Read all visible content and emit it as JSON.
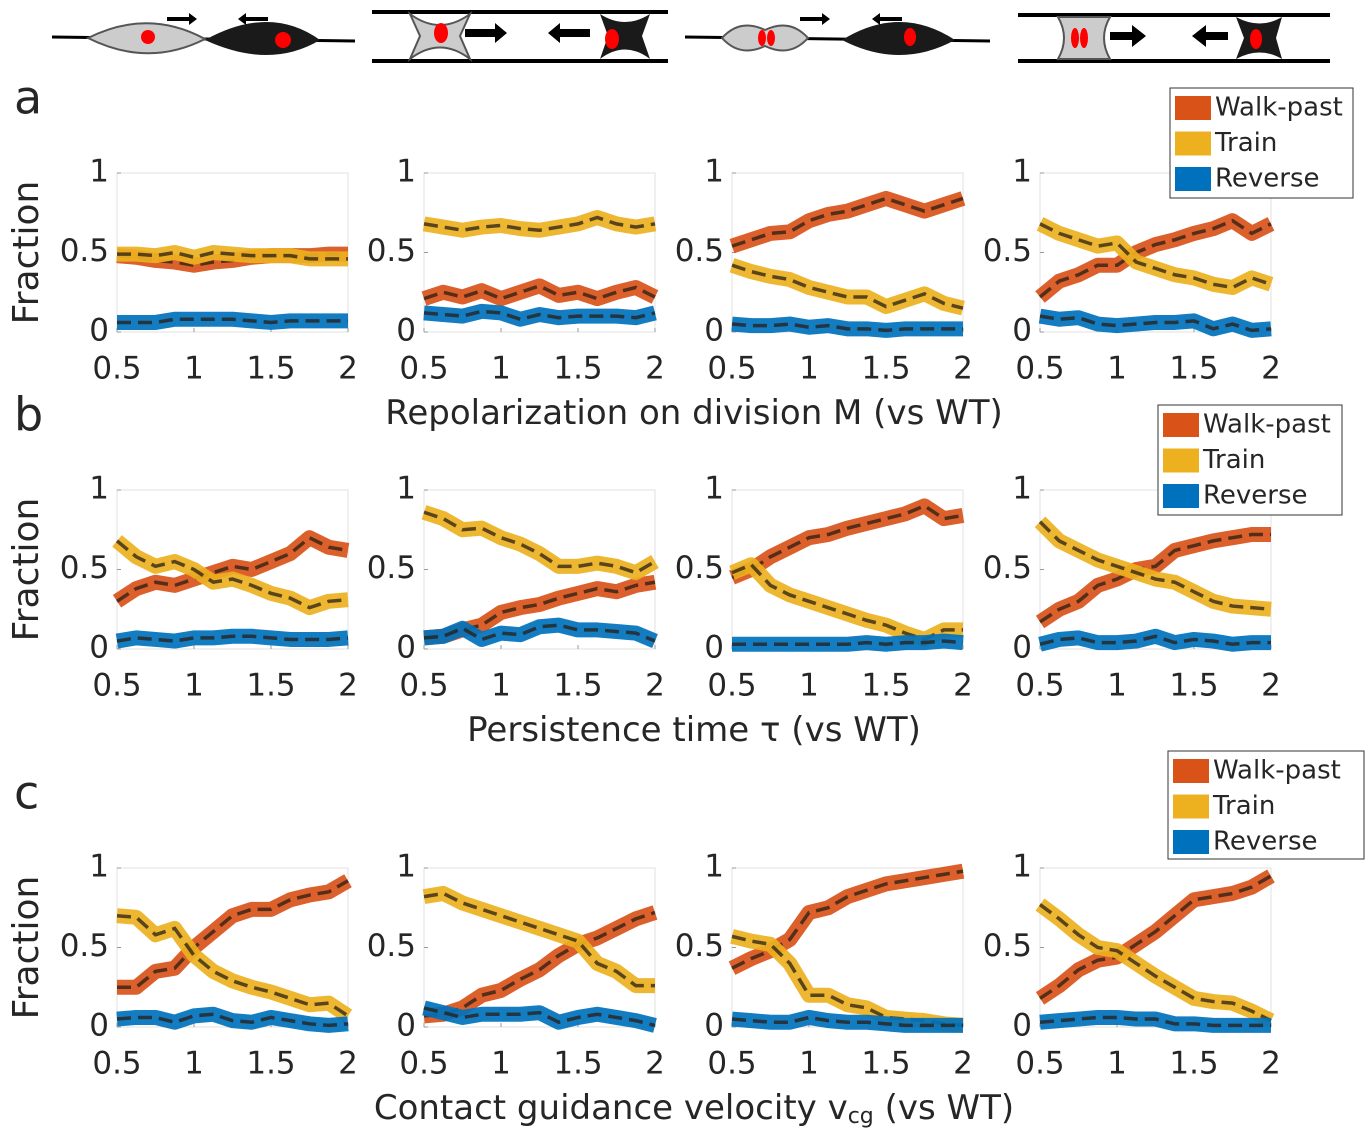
{
  "chart_data": [
    {
      "type": "line",
      "panel_label": "a",
      "ylabel": "Fraction",
      "xlabel": "Repolarization on division M (vs WT)",
      "x": [
        0.5,
        0.625,
        0.75,
        0.875,
        1,
        1.125,
        1.25,
        1.375,
        1.5,
        1.625,
        1.75,
        1.875,
        2
      ],
      "xlim": [
        0.5,
        2
      ],
      "ylim": [
        0,
        1
      ],
      "xticks": [
        0.5,
        1,
        1.5,
        2
      ],
      "yticks": [
        0,
        0.5,
        1
      ],
      "series": [
        {
          "name": "Walk-past",
          "color": "#d95319",
          "values": [
            0.48,
            0.47,
            0.45,
            0.44,
            0.42,
            0.44,
            0.45,
            0.47,
            0.48,
            0.48,
            0.48,
            0.49,
            0.49
          ]
        },
        {
          "name": "Train",
          "color": "#edb120",
          "values": [
            0.49,
            0.49,
            0.48,
            0.5,
            0.47,
            0.5,
            0.49,
            0.48,
            0.48,
            0.48,
            0.46,
            0.46,
            0.46
          ]
        },
        {
          "name": "Reverse",
          "color": "#0072bd",
          "values": [
            0.06,
            0.06,
            0.06,
            0.08,
            0.08,
            0.08,
            0.08,
            0.07,
            0.06,
            0.07,
            0.07,
            0.07,
            0.07
          ]
        }
      ]
    },
    {
      "type": "line",
      "x": [
        0.5,
        0.625,
        0.75,
        0.875,
        1,
        1.125,
        1.25,
        1.375,
        1.5,
        1.625,
        1.75,
        1.875,
        2
      ],
      "xlim": [
        0.5,
        2
      ],
      "ylim": [
        0,
        1
      ],
      "xticks": [
        0.5,
        1,
        1.5,
        2
      ],
      "yticks": [
        0,
        0.5,
        1
      ],
      "series": [
        {
          "name": "Walk-past",
          "color": "#d95319",
          "values": [
            0.21,
            0.25,
            0.22,
            0.26,
            0.21,
            0.25,
            0.29,
            0.23,
            0.25,
            0.21,
            0.25,
            0.28,
            0.22
          ]
        },
        {
          "name": "Train",
          "color": "#edb120",
          "values": [
            0.68,
            0.66,
            0.64,
            0.66,
            0.67,
            0.65,
            0.64,
            0.66,
            0.68,
            0.72,
            0.68,
            0.66,
            0.68
          ]
        },
        {
          "name": "Reverse",
          "color": "#0072bd",
          "values": [
            0.12,
            0.11,
            0.1,
            0.13,
            0.12,
            0.08,
            0.11,
            0.09,
            0.1,
            0.1,
            0.1,
            0.09,
            0.12
          ]
        }
      ]
    },
    {
      "type": "line",
      "x": [
        0.5,
        0.625,
        0.75,
        0.875,
        1,
        1.125,
        1.25,
        1.375,
        1.5,
        1.625,
        1.75,
        1.875,
        2
      ],
      "xlim": [
        0.5,
        2
      ],
      "ylim": [
        0,
        1
      ],
      "xticks": [
        0.5,
        1,
        1.5,
        2
      ],
      "yticks": [
        0,
        0.5,
        1
      ],
      "series": [
        {
          "name": "Walk-past",
          "color": "#d95319",
          "values": [
            0.54,
            0.58,
            0.62,
            0.63,
            0.7,
            0.74,
            0.76,
            0.8,
            0.84,
            0.8,
            0.76,
            0.8,
            0.84
          ]
        },
        {
          "name": "Train",
          "color": "#edb120",
          "values": [
            0.42,
            0.38,
            0.35,
            0.33,
            0.28,
            0.25,
            0.22,
            0.22,
            0.16,
            0.2,
            0.24,
            0.18,
            0.15
          ]
        },
        {
          "name": "Reverse",
          "color": "#0072bd",
          "values": [
            0.05,
            0.04,
            0.04,
            0.05,
            0.03,
            0.04,
            0.02,
            0.02,
            0.01,
            0.02,
            0.02,
            0.02,
            0.02
          ]
        }
      ]
    },
    {
      "type": "line",
      "legend": "top-right",
      "x": [
        0.5,
        0.625,
        0.75,
        0.875,
        1,
        1.125,
        1.25,
        1.375,
        1.5,
        1.625,
        1.75,
        1.875,
        2
      ],
      "xlim": [
        0.5,
        2
      ],
      "ylim": [
        0,
        1
      ],
      "xticks": [
        0.5,
        1,
        1.5,
        2
      ],
      "yticks": [
        0,
        0.5,
        1
      ],
      "series": [
        {
          "name": "Walk-past",
          "color": "#d95319",
          "values": [
            0.22,
            0.32,
            0.36,
            0.42,
            0.42,
            0.5,
            0.55,
            0.58,
            0.62,
            0.65,
            0.7,
            0.62,
            0.68
          ]
        },
        {
          "name": "Train",
          "color": "#edb120",
          "values": [
            0.68,
            0.62,
            0.58,
            0.54,
            0.56,
            0.44,
            0.4,
            0.36,
            0.34,
            0.3,
            0.28,
            0.34,
            0.3
          ]
        },
        {
          "name": "Reverse",
          "color": "#0072bd",
          "values": [
            0.1,
            0.08,
            0.09,
            0.05,
            0.04,
            0.05,
            0.06,
            0.06,
            0.07,
            0.02,
            0.05,
            0.01,
            0.02
          ]
        }
      ]
    },
    {
      "type": "line",
      "panel_label": "b",
      "ylabel": "Fraction",
      "xlabel": "Persistence time τ (vs WT)",
      "x": [
        0.5,
        0.625,
        0.75,
        0.875,
        1,
        1.125,
        1.25,
        1.375,
        1.5,
        1.625,
        1.75,
        1.875,
        2
      ],
      "xlim": [
        0.5,
        2
      ],
      "ylim": [
        0,
        1
      ],
      "xticks": [
        0.5,
        1,
        1.5,
        2
      ],
      "yticks": [
        0,
        0.5,
        1
      ],
      "series": [
        {
          "name": "Walk-past",
          "color": "#d95319",
          "values": [
            0.3,
            0.38,
            0.42,
            0.4,
            0.44,
            0.48,
            0.52,
            0.5,
            0.55,
            0.6,
            0.7,
            0.64,
            0.62
          ]
        },
        {
          "name": "Train",
          "color": "#edb120",
          "values": [
            0.68,
            0.58,
            0.52,
            0.55,
            0.5,
            0.42,
            0.44,
            0.4,
            0.35,
            0.32,
            0.26,
            0.3,
            0.31
          ]
        },
        {
          "name": "Reverse",
          "color": "#0072bd",
          "values": [
            0.05,
            0.07,
            0.06,
            0.05,
            0.07,
            0.07,
            0.08,
            0.08,
            0.07,
            0.06,
            0.06,
            0.06,
            0.07
          ]
        }
      ]
    },
    {
      "type": "line",
      "x": [
        0.5,
        0.625,
        0.75,
        0.875,
        1,
        1.125,
        1.25,
        1.375,
        1.5,
        1.625,
        1.75,
        1.875,
        2
      ],
      "xlim": [
        0.5,
        2
      ],
      "ylim": [
        0,
        1
      ],
      "xticks": [
        0.5,
        1,
        1.5,
        2
      ],
      "yticks": [
        0,
        0.5,
        1
      ],
      "series": [
        {
          "name": "Walk-past",
          "color": "#d95319",
          "values": [
            0.07,
            0.08,
            0.12,
            0.15,
            0.23,
            0.26,
            0.28,
            0.32,
            0.35,
            0.38,
            0.36,
            0.4,
            0.42
          ]
        },
        {
          "name": "Train",
          "color": "#edb120",
          "values": [
            0.86,
            0.82,
            0.75,
            0.76,
            0.7,
            0.66,
            0.6,
            0.52,
            0.52,
            0.54,
            0.52,
            0.48,
            0.55
          ]
        },
        {
          "name": "Reverse",
          "color": "#0072bd",
          "values": [
            0.07,
            0.08,
            0.13,
            0.06,
            0.1,
            0.09,
            0.14,
            0.15,
            0.12,
            0.12,
            0.11,
            0.1,
            0.05
          ]
        }
      ]
    },
    {
      "type": "line",
      "x": [
        0.5,
        0.625,
        0.75,
        0.875,
        1,
        1.125,
        1.25,
        1.375,
        1.5,
        1.625,
        1.75,
        1.875,
        2
      ],
      "xlim": [
        0.5,
        2
      ],
      "ylim": [
        0,
        1
      ],
      "xticks": [
        0.5,
        1,
        1.5,
        2
      ],
      "yticks": [
        0,
        0.5,
        1
      ],
      "series": [
        {
          "name": "Walk-past",
          "color": "#d95319",
          "values": [
            0.45,
            0.5,
            0.58,
            0.64,
            0.7,
            0.72,
            0.76,
            0.79,
            0.82,
            0.85,
            0.9,
            0.82,
            0.84
          ]
        },
        {
          "name": "Train",
          "color": "#edb120",
          "values": [
            0.48,
            0.53,
            0.4,
            0.34,
            0.3,
            0.26,
            0.22,
            0.18,
            0.15,
            0.1,
            0.06,
            0.12,
            0.12
          ]
        },
        {
          "name": "Reverse",
          "color": "#0072bd",
          "values": [
            0.03,
            0.03,
            0.03,
            0.03,
            0.03,
            0.03,
            0.03,
            0.04,
            0.03,
            0.04,
            0.04,
            0.05,
            0.04
          ]
        }
      ]
    },
    {
      "type": "line",
      "legend": "top-right",
      "x": [
        0.5,
        0.625,
        0.75,
        0.875,
        1,
        1.125,
        1.25,
        1.375,
        1.5,
        1.625,
        1.75,
        1.875,
        2
      ],
      "xlim": [
        0.5,
        2
      ],
      "ylim": [
        0,
        1
      ],
      "xticks": [
        0.5,
        1,
        1.5,
        2
      ],
      "yticks": [
        0,
        0.5,
        1
      ],
      "series": [
        {
          "name": "Walk-past",
          "color": "#d95319",
          "values": [
            0.17,
            0.25,
            0.3,
            0.4,
            0.44,
            0.5,
            0.52,
            0.62,
            0.65,
            0.68,
            0.7,
            0.72,
            0.72
          ]
        },
        {
          "name": "Train",
          "color": "#edb120",
          "values": [
            0.8,
            0.68,
            0.62,
            0.56,
            0.52,
            0.48,
            0.44,
            0.42,
            0.36,
            0.3,
            0.27,
            0.26,
            0.25
          ]
        },
        {
          "name": "Reverse",
          "color": "#0072bd",
          "values": [
            0.03,
            0.06,
            0.07,
            0.04,
            0.04,
            0.05,
            0.08,
            0.04,
            0.06,
            0.05,
            0.03,
            0.04,
            0.04
          ]
        }
      ]
    },
    {
      "type": "line",
      "panel_label": "c",
      "ylabel": "Fraction",
      "xlabel": "Contact guidance velocity v",
      "xlabel_sub": "cg",
      "xlabel_tail": " (vs WT)",
      "x": [
        0.5,
        0.625,
        0.75,
        0.875,
        1,
        1.125,
        1.25,
        1.375,
        1.5,
        1.625,
        1.75,
        1.875,
        2
      ],
      "xlim": [
        0.5,
        2
      ],
      "ylim": [
        0,
        1
      ],
      "xticks": [
        0.5,
        1,
        1.5,
        2
      ],
      "yticks": [
        0,
        0.5,
        1
      ],
      "series": [
        {
          "name": "Walk-past",
          "color": "#d95319",
          "values": [
            0.25,
            0.25,
            0.35,
            0.37,
            0.5,
            0.6,
            0.7,
            0.74,
            0.74,
            0.8,
            0.83,
            0.85,
            0.92
          ]
        },
        {
          "name": "Train",
          "color": "#edb120",
          "values": [
            0.7,
            0.69,
            0.58,
            0.62,
            0.45,
            0.35,
            0.29,
            0.25,
            0.22,
            0.18,
            0.14,
            0.15,
            0.07
          ]
        },
        {
          "name": "Reverse",
          "color": "#0072bd",
          "values": [
            0.05,
            0.06,
            0.06,
            0.03,
            0.07,
            0.08,
            0.04,
            0.03,
            0.06,
            0.04,
            0.02,
            0.01,
            0.02
          ]
        }
      ]
    },
    {
      "type": "line",
      "x": [
        0.5,
        0.625,
        0.75,
        0.875,
        1,
        1.125,
        1.25,
        1.375,
        1.5,
        1.625,
        1.75,
        1.875,
        2
      ],
      "xlim": [
        0.5,
        2
      ],
      "ylim": [
        0,
        1
      ],
      "xticks": [
        0.5,
        1,
        1.5,
        2
      ],
      "yticks": [
        0,
        0.5,
        1
      ],
      "series": [
        {
          "name": "Walk-past",
          "color": "#d95319",
          "values": [
            0.07,
            0.08,
            0.12,
            0.2,
            0.23,
            0.3,
            0.36,
            0.45,
            0.52,
            0.56,
            0.62,
            0.68,
            0.72
          ]
        },
        {
          "name": "Train",
          "color": "#edb120",
          "values": [
            0.82,
            0.84,
            0.78,
            0.74,
            0.7,
            0.66,
            0.62,
            0.58,
            0.54,
            0.4,
            0.35,
            0.26,
            0.26
          ]
        },
        {
          "name": "Reverse",
          "color": "#0072bd",
          "values": [
            0.12,
            0.09,
            0.06,
            0.08,
            0.08,
            0.08,
            0.09,
            0.03,
            0.06,
            0.08,
            0.06,
            0.04,
            0.01
          ]
        }
      ]
    },
    {
      "type": "line",
      "x": [
        0.5,
        0.625,
        0.75,
        0.875,
        1,
        1.125,
        1.25,
        1.375,
        1.5,
        1.625,
        1.75,
        1.875,
        2
      ],
      "xlim": [
        0.5,
        2
      ],
      "ylim": [
        0,
        1
      ],
      "xticks": [
        0.5,
        1,
        1.5,
        2
      ],
      "yticks": [
        0,
        0.5,
        1
      ],
      "series": [
        {
          "name": "Walk-past",
          "color": "#d95319",
          "values": [
            0.37,
            0.43,
            0.48,
            0.55,
            0.72,
            0.75,
            0.82,
            0.86,
            0.9,
            0.92,
            0.94,
            0.96,
            0.98
          ]
        },
        {
          "name": "Train",
          "color": "#edb120",
          "values": [
            0.57,
            0.54,
            0.52,
            0.4,
            0.2,
            0.2,
            0.14,
            0.12,
            0.06,
            0.05,
            0.04,
            0.02,
            0.01
          ]
        },
        {
          "name": "Reverse",
          "color": "#0072bd",
          "values": [
            0.05,
            0.04,
            0.03,
            0.03,
            0.06,
            0.04,
            0.03,
            0.03,
            0.02,
            0.01,
            0.01,
            0.01,
            0.01
          ]
        }
      ]
    },
    {
      "type": "line",
      "legend": "top-right",
      "x": [
        0.5,
        0.625,
        0.75,
        0.875,
        1,
        1.125,
        1.25,
        1.375,
        1.5,
        1.625,
        1.75,
        1.875,
        2
      ],
      "xlim": [
        0.5,
        2
      ],
      "ylim": [
        0,
        1
      ],
      "xticks": [
        0.5,
        1,
        1.5,
        2
      ],
      "yticks": [
        0,
        0.5,
        1
      ],
      "series": [
        {
          "name": "Walk-past",
          "color": "#d95319",
          "values": [
            0.18,
            0.26,
            0.36,
            0.42,
            0.44,
            0.52,
            0.6,
            0.7,
            0.8,
            0.82,
            0.84,
            0.88,
            0.95
          ]
        },
        {
          "name": "Train",
          "color": "#edb120",
          "values": [
            0.77,
            0.68,
            0.58,
            0.5,
            0.48,
            0.4,
            0.32,
            0.25,
            0.18,
            0.16,
            0.15,
            0.1,
            0.04
          ]
        },
        {
          "name": "Reverse",
          "color": "#0072bd",
          "values": [
            0.03,
            0.04,
            0.05,
            0.06,
            0.06,
            0.05,
            0.05,
            0.02,
            0.02,
            0.01,
            0.01,
            0.01,
            0.01
          ]
        }
      ]
    }
  ]
}
